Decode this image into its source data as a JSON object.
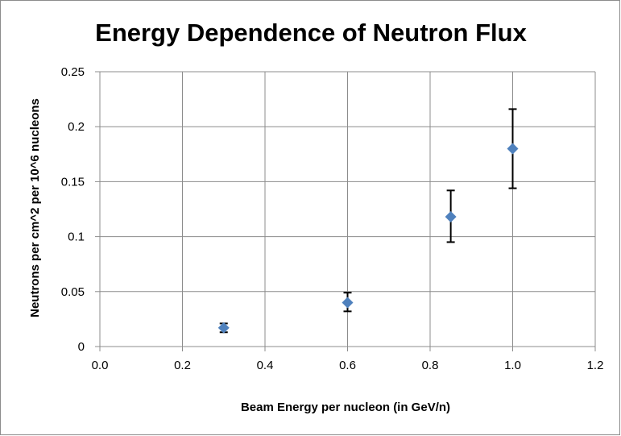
{
  "chart_data": {
    "type": "scatter",
    "title": "Energy Dependence of Neutron Flux",
    "xlabel": "Beam Energy per nucleon (in GeV/n)",
    "ylabel": "Neutrons per cm^2 per 10^6 nucleons",
    "xlim": [
      0,
      1.2
    ],
    "ylim": [
      0,
      0.25
    ],
    "x_ticks": [
      "0.0",
      "0.2",
      "0.4",
      "0.6",
      "0.8",
      "1.0",
      "1.2"
    ],
    "y_ticks": [
      "0",
      "0.05",
      "0.1",
      "0.15",
      "0.2",
      "0.25"
    ],
    "grid": true,
    "legend": "none",
    "marker": "diamond",
    "marker_color": "#4f81bd",
    "errorbar_color": "#000000",
    "series": [
      {
        "points": [
          {
            "x": 0.3,
            "y": 0.017,
            "y_err_low": 0.013,
            "y_err_high": 0.021
          },
          {
            "x": 0.6,
            "y": 0.04,
            "y_err_low": 0.032,
            "y_err_high": 0.049
          },
          {
            "x": 0.85,
            "y": 0.118,
            "y_err_low": 0.095,
            "y_err_high": 0.142
          },
          {
            "x": 1.0,
            "y": 0.18,
            "y_err_low": 0.144,
            "y_err_high": 0.216
          }
        ]
      }
    ]
  }
}
